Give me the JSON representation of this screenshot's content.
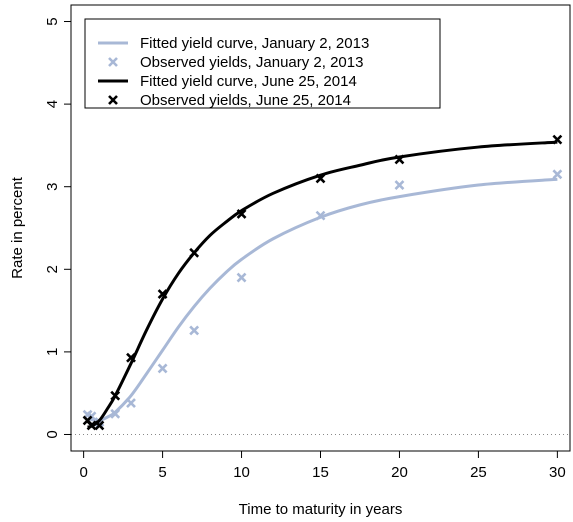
{
  "chart_data": {
    "type": "line",
    "title": "",
    "xlabel": "Time to maturity in years",
    "ylabel": "Rate in percent",
    "xlim": [
      -0.8,
      30.8
    ],
    "ylim": [
      -0.2,
      5.2
    ],
    "x_ticks": [
      0,
      5,
      10,
      15,
      20,
      25,
      30
    ],
    "y_ticks": [
      0,
      1,
      2,
      3,
      4,
      5
    ],
    "zero_reference_line": "dotted",
    "legend_placement": "top-left",
    "colors": {
      "jan": "#a8b8d6",
      "jun": "#000000"
    },
    "series": [
      {
        "name": "Fitted yield curve, January 2, 2013",
        "kind": "line",
        "color": "#a8b8d6",
        "x": [
          0.25,
          0.5,
          1,
          1.5,
          2,
          3,
          4,
          5,
          6,
          7,
          8,
          9,
          10,
          12,
          15,
          17.5,
          20,
          25,
          30
        ],
        "y": [
          0.2,
          0.18,
          0.17,
          0.21,
          0.27,
          0.47,
          0.74,
          1.02,
          1.3,
          1.55,
          1.77,
          1.96,
          2.12,
          2.37,
          2.63,
          2.78,
          2.88,
          3.02,
          3.09
        ]
      },
      {
        "name": "Observed yields, January 2, 2013",
        "kind": "points",
        "color": "#a8b8d6",
        "x": [
          0.25,
          0.5,
          1,
          2,
          3,
          5,
          7,
          10,
          15,
          20,
          30
        ],
        "y": [
          0.24,
          0.22,
          0.15,
          0.25,
          0.38,
          0.8,
          1.26,
          1.9,
          2.65,
          3.02,
          3.15
        ]
      },
      {
        "name": "Fitted yield curve, June 25, 2014",
        "kind": "line",
        "color": "#000000",
        "x": [
          0.25,
          0.5,
          1,
          1.5,
          2,
          3,
          4,
          5,
          6,
          7,
          8,
          9,
          10,
          12,
          15,
          17.5,
          20,
          25,
          30
        ],
        "y": [
          0.09,
          0.1,
          0.17,
          0.31,
          0.47,
          0.86,
          1.27,
          1.64,
          1.95,
          2.2,
          2.41,
          2.57,
          2.71,
          2.92,
          3.14,
          3.26,
          3.36,
          3.48,
          3.54
        ]
      },
      {
        "name": "Observed yields, June 25, 2014",
        "kind": "points",
        "color": "#000000",
        "x": [
          0.25,
          0.5,
          1,
          2,
          3,
          5,
          7,
          10,
          15,
          20,
          30
        ],
        "y": [
          0.17,
          0.11,
          0.11,
          0.47,
          0.93,
          1.7,
          2.2,
          2.67,
          3.1,
          3.33,
          3.57
        ]
      }
    ]
  }
}
